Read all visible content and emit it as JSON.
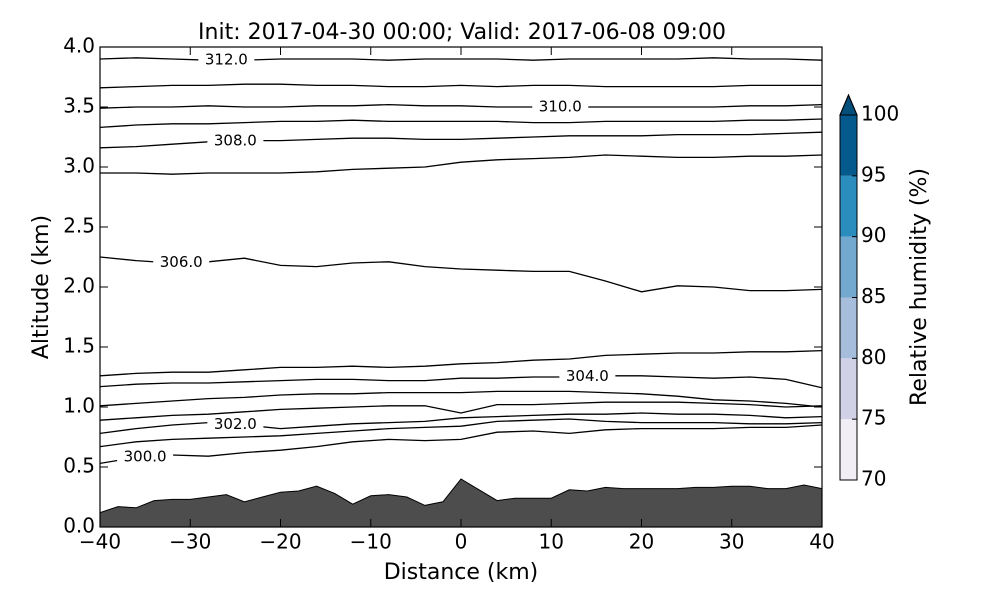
{
  "chart_data": {
    "type": "contour",
    "title": "Init: 2017-04-30 00:00; Valid: 2017-06-08 09:00",
    "xlabel": "Distance (km)",
    "ylabel": "Altitude (km)",
    "xlim": [
      -40,
      40
    ],
    "ylim": [
      0,
      4
    ],
    "xticks": [
      {
        "value": -40,
        "label": "−40"
      },
      {
        "value": -30,
        "label": "−30"
      },
      {
        "value": -20,
        "label": "−20"
      },
      {
        "value": -10,
        "label": "−10"
      },
      0,
      10,
      20,
      30,
      40
    ],
    "yticks": [
      {
        "value": 0,
        "label": "0.0"
      },
      0.5,
      {
        "value": 1,
        "label": "1.0"
      },
      1.5,
      {
        "value": 2,
        "label": "2.0"
      },
      2.5,
      {
        "value": 3,
        "label": "3.0"
      },
      3.5,
      {
        "value": 4,
        "label": "4.0"
      }
    ],
    "line_color": "#000000",
    "contour_x": [
      -40,
      -36,
      -32,
      -28,
      -24,
      -20,
      -16,
      -12,
      -8,
      -4,
      0,
      4,
      8,
      12,
      16,
      20,
      24,
      28,
      32,
      36,
      40
    ],
    "contours": [
      {
        "name": "312.0",
        "values": [
          3.9,
          3.91,
          3.9,
          3.89,
          3.89,
          3.9,
          3.9,
          3.9,
          3.89,
          3.9,
          3.9,
          3.9,
          3.89,
          3.9,
          3.9,
          3.9,
          3.9,
          3.91,
          3.9,
          3.9,
          3.89
        ]
      },
      {
        "values": [
          3.66,
          3.67,
          3.68,
          3.68,
          3.69,
          3.69,
          3.68,
          3.68,
          3.67,
          3.67,
          3.68,
          3.67,
          3.68,
          3.68,
          3.67,
          3.67,
          3.67,
          3.67,
          3.68,
          3.68,
          3.68
        ]
      },
      {
        "name": "310.0",
        "values": [
          3.49,
          3.5,
          3.5,
          3.51,
          3.5,
          3.5,
          3.51,
          3.51,
          3.52,
          3.51,
          3.51,
          3.5,
          3.5,
          3.5,
          3.5,
          3.5,
          3.5,
          3.5,
          3.51,
          3.51,
          3.52
        ]
      },
      {
        "values": [
          3.33,
          3.35,
          3.36,
          3.36,
          3.37,
          3.38,
          3.38,
          3.39,
          3.38,
          3.38,
          3.38,
          3.38,
          3.37,
          3.37,
          3.38,
          3.38,
          3.38,
          3.38,
          3.39,
          3.39,
          3.4
        ]
      },
      {
        "name": "308.0",
        "values": [
          3.16,
          3.17,
          3.19,
          3.21,
          3.22,
          3.22,
          3.23,
          3.24,
          3.24,
          3.23,
          3.23,
          3.24,
          3.25,
          3.26,
          3.26,
          3.26,
          3.27,
          3.27,
          3.27,
          3.28,
          3.29
        ]
      },
      {
        "values": [
          2.95,
          2.95,
          2.94,
          2.95,
          2.95,
          2.95,
          2.96,
          2.98,
          2.99,
          3.0,
          3.04,
          3.06,
          3.07,
          3.08,
          3.1,
          3.09,
          3.08,
          3.08,
          3.09,
          3.09,
          3.1
        ]
      },
      {
        "name": "306.0",
        "values": [
          2.25,
          2.22,
          2.2,
          2.21,
          2.24,
          2.18,
          2.17,
          2.2,
          2.21,
          2.17,
          2.15,
          2.14,
          2.13,
          2.13,
          2.05,
          1.96,
          2.01,
          2.0,
          1.97,
          1.97,
          1.98
        ]
      },
      {
        "values": [
          1.26,
          1.28,
          1.29,
          1.29,
          1.31,
          1.33,
          1.33,
          1.34,
          1.33,
          1.34,
          1.36,
          1.37,
          1.39,
          1.4,
          1.43,
          1.44,
          1.45,
          1.45,
          1.46,
          1.46,
          1.47
        ]
      },
      {
        "name": "304.0",
        "values": [
          1.17,
          1.19,
          1.2,
          1.2,
          1.21,
          1.22,
          1.23,
          1.23,
          1.22,
          1.22,
          1.24,
          1.24,
          1.25,
          1.25,
          1.26,
          1.26,
          1.25,
          1.24,
          1.25,
          1.23,
          1.16
        ]
      },
      {
        "values": [
          1.01,
          1.03,
          1.05,
          1.07,
          1.08,
          1.1,
          1.11,
          1.11,
          1.12,
          1.12,
          1.12,
          1.13,
          1.13,
          1.13,
          1.12,
          1.11,
          1.09,
          1.06,
          1.05,
          1.03,
          1.0
        ]
      },
      {
        "values": [
          0.89,
          0.91,
          0.93,
          0.94,
          0.96,
          0.98,
          0.99,
          1.0,
          1.01,
          1.01,
          0.95,
          1.02,
          1.02,
          1.03,
          1.04,
          1.04,
          1.04,
          1.03,
          1.02,
          1.0,
          1.01
        ]
      },
      {
        "name": "302.0",
        "values": [
          0.78,
          0.82,
          0.85,
          0.87,
          0.85,
          0.82,
          0.84,
          0.86,
          0.87,
          0.88,
          0.91,
          0.92,
          0.93,
          0.94,
          0.94,
          0.95,
          0.94,
          0.94,
          0.93,
          0.91,
          0.92
        ]
      },
      {
        "values": [
          0.67,
          0.71,
          0.73,
          0.74,
          0.75,
          0.76,
          0.78,
          0.8,
          0.82,
          0.83,
          0.84,
          0.88,
          0.89,
          0.9,
          0.88,
          0.87,
          0.87,
          0.87,
          0.86,
          0.86,
          0.87
        ]
      },
      {
        "name": "300.0",
        "values": [
          0.53,
          0.58,
          0.6,
          0.59,
          0.62,
          0.64,
          0.67,
          0.71,
          0.73,
          0.72,
          0.73,
          0.79,
          0.8,
          0.78,
          0.81,
          0.82,
          0.82,
          0.82,
          0.83,
          0.83,
          0.85
        ]
      }
    ],
    "terrain": {
      "color": "#4d4d4d",
      "x": [
        -40,
        -38,
        -36,
        -34,
        -32,
        -30,
        -28,
        -26,
        -24,
        -22,
        -20,
        -18,
        -16,
        -14,
        -12,
        -10,
        -8,
        -6,
        -4,
        -2,
        0,
        2,
        4,
        6,
        8,
        10,
        12,
        14,
        16,
        18,
        20,
        22,
        24,
        26,
        28,
        30,
        32,
        34,
        36,
        38,
        40
      ],
      "values": [
        0.12,
        0.17,
        0.16,
        0.22,
        0.23,
        0.23,
        0.25,
        0.27,
        0.21,
        0.25,
        0.29,
        0.3,
        0.34,
        0.28,
        0.19,
        0.26,
        0.27,
        0.25,
        0.18,
        0.21,
        0.4,
        0.31,
        0.22,
        0.24,
        0.24,
        0.24,
        0.31,
        0.3,
        0.33,
        0.32,
        0.32,
        0.32,
        0.32,
        0.33,
        0.33,
        0.34,
        0.34,
        0.32,
        0.32,
        0.35,
        0.32
      ]
    },
    "colorbar": {
      "label": "Relative humidity (%)",
      "levels": [
        70,
        75,
        80,
        85,
        90,
        95,
        100
      ],
      "colors": [
        "#f1eef6",
        "#d0d1e6",
        "#a6bddb",
        "#74a9cf",
        "#2b8cbe",
        "#045a8d"
      ],
      "extend_color": "#034e7b",
      "ticks": [
        70,
        75,
        80,
        85,
        90,
        95,
        100
      ]
    }
  }
}
